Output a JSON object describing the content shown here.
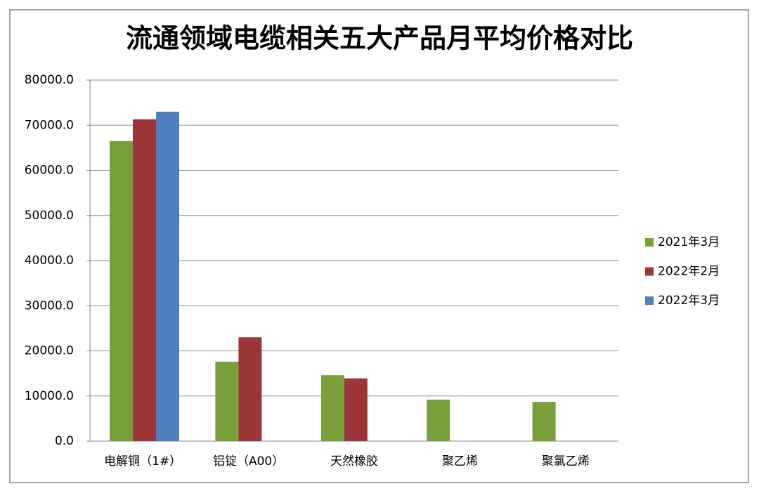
{
  "chart_data": {
    "type": "bar",
    "title": "流通领域电缆相关五大产品月平均价格对比",
    "categories": [
      "电解铜（1#）",
      "铝锭（A00）",
      "天然橡胶",
      "聚乙烯",
      "聚氯乙烯"
    ],
    "series": [
      {
        "name": "2021年3月",
        "color": "#77a03a",
        "values": [
          66500,
          17600,
          14600,
          9200,
          8700
        ]
      },
      {
        "name": "2022年2月",
        "color": "#9b3538",
        "values": [
          71300,
          23000,
          13900,
          null,
          null
        ]
      },
      {
        "name": "2022年3月",
        "color": "#4f7fbf",
        "values": [
          73000,
          null,
          null,
          null,
          null
        ]
      }
    ],
    "ylim": [
      0,
      80000
    ],
    "yticks": [
      {
        "value": 0,
        "label": "0.0"
      },
      {
        "value": 10000,
        "label": "10000.0"
      },
      {
        "value": 20000,
        "label": "20000.0"
      },
      {
        "value": 30000,
        "label": "30000.0"
      },
      {
        "value": 40000,
        "label": "40000.0"
      },
      {
        "value": 50000,
        "label": "50000.0"
      },
      {
        "value": 60000,
        "label": "60000.0"
      },
      {
        "value": 70000,
        "label": "70000.0"
      },
      {
        "value": 80000,
        "label": "80000.0"
      }
    ],
    "grid": true,
    "legend": "right"
  }
}
